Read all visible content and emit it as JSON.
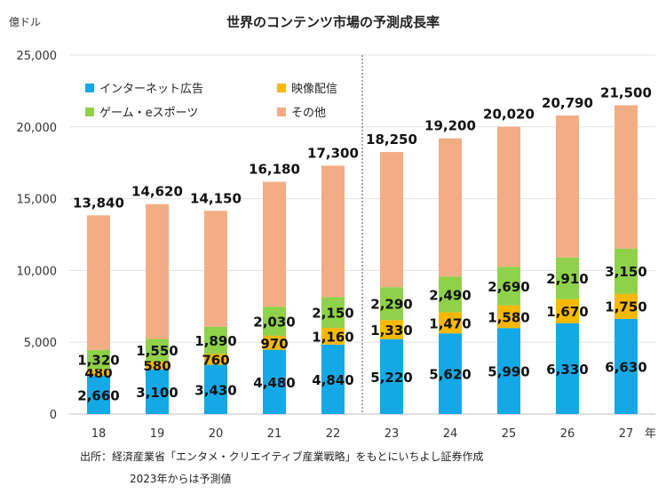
{
  "chart_data": {
    "type": "bar",
    "stacked": true,
    "title": "世界のコンテンツ市場の予測成長率",
    "ylabel": "億ドル",
    "xlabel": "年",
    "ylim": [
      0,
      25000
    ],
    "yticks": [
      "0",
      "5,000",
      "10,000",
      "15,000",
      "20,000",
      "25,000"
    ],
    "categories": [
      "18",
      "19",
      "20",
      "21",
      "22",
      "23",
      "24",
      "25",
      "26",
      "27"
    ],
    "totals": [
      "13,840",
      "14,620",
      "14,150",
      "16,180",
      "17,300",
      "18,250",
      "19,200",
      "20,020",
      "20,790",
      "21,500"
    ],
    "forecast_divider_after": "22",
    "grid": true,
    "legend_position": "top-left",
    "series": [
      {
        "name": "インターネット広告",
        "color": "#14a9e6",
        "values": [
          2660,
          3100,
          3430,
          4480,
          4840,
          5220,
          5620,
          5990,
          6330,
          6630
        ],
        "labels": [
          "2,660",
          "3,100",
          "3,430",
          "4,480",
          "4,840",
          "5,220",
          "5,620",
          "5,990",
          "6,330",
          "6,630"
        ]
      },
      {
        "name": "映像配信",
        "color": "#f7b800",
        "values": [
          480,
          580,
          760,
          970,
          1160,
          1330,
          1470,
          1580,
          1670,
          1750
        ],
        "labels": [
          "480",
          "580",
          "760",
          "970",
          "1,160",
          "1,330",
          "1,470",
          "1,580",
          "1,670",
          "1,750"
        ]
      },
      {
        "name": "ゲーム・eスポーツ",
        "color": "#8fd14a",
        "values": [
          1320,
          1550,
          1890,
          2030,
          2150,
          2290,
          2490,
          2690,
          2910,
          3150
        ],
        "labels": [
          "1,320",
          "1,550",
          "1,890",
          "2,030",
          "2,150",
          "2,290",
          "2,490",
          "2,690",
          "2,910",
          "3,150"
        ]
      },
      {
        "name": "その他",
        "color": "#f3ad85",
        "values": [
          9380,
          9390,
          8070,
          8700,
          9150,
          9410,
          9620,
          9760,
          9880,
          9970
        ]
      }
    ]
  },
  "source_line1": "出所：経済産業省「エンタメ・クリエイティブ産業戦略」をもとにいちよし証券作成",
  "source_line2": "2023年からは予測値"
}
